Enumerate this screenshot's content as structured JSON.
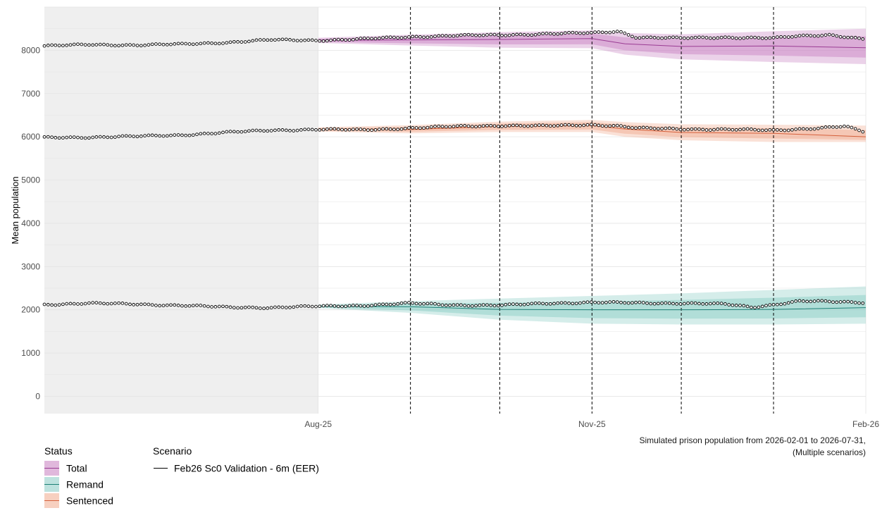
{
  "chart_data": {
    "type": "line",
    "title": "",
    "xlabel": "",
    "ylabel": "Mean population",
    "ylim": [
      -400,
      9000
    ],
    "yticks": [
      0,
      1000,
      2000,
      3000,
      4000,
      5000,
      6000,
      7000,
      8000
    ],
    "xlim": [
      "2025-05-01",
      "2026-02-01"
    ],
    "xticks": [
      {
        "date": "2025-08-01",
        "label": "Aug-25"
      },
      {
        "date": "2025-11-01",
        "label": "Nov-25"
      },
      {
        "date": "2026-02-01",
        "label": "Feb-26"
      }
    ],
    "shaded_period": [
      "2025-05-01",
      "2025-08-01"
    ],
    "vlines": [
      "2025-09-01",
      "2025-10-01",
      "2025-11-01",
      "2025-12-01",
      "2026-01-01"
    ],
    "grid": true,
    "colors": {
      "Total": "#9a3c93",
      "Remand": "#1d7f75",
      "Sentenced": "#d5603b",
      "Total_fill": "#c77ec0",
      "Remand_fill": "#86cbc3",
      "Sentenced_fill": "#f0a98c",
      "observed": "#000000",
      "shade": "#efefef"
    },
    "observed_series": [
      {
        "name": "Total",
        "points": [
          [
            "2025-05-01",
            8100
          ],
          [
            "2025-05-16",
            8130
          ],
          [
            "2025-06-01",
            8120
          ],
          [
            "2025-06-16",
            8140
          ],
          [
            "2025-07-01",
            8180
          ],
          [
            "2025-07-16",
            8240
          ],
          [
            "2025-08-01",
            8230
          ],
          [
            "2025-08-16",
            8260
          ],
          [
            "2025-09-01",
            8310
          ],
          [
            "2025-09-16",
            8340
          ],
          [
            "2025-10-01",
            8350
          ],
          [
            "2025-10-16",
            8380
          ],
          [
            "2025-11-01",
            8400
          ],
          [
            "2025-11-10",
            8440
          ],
          [
            "2025-11-16",
            8300
          ],
          [
            "2025-12-01",
            8280
          ],
          [
            "2025-12-16",
            8300
          ],
          [
            "2026-01-01",
            8280
          ],
          [
            "2026-01-10",
            8330
          ],
          [
            "2026-01-20",
            8360
          ],
          [
            "2026-02-01",
            8250
          ]
        ]
      },
      {
        "name": "Sentenced",
        "points": [
          [
            "2025-05-01",
            5980
          ],
          [
            "2025-05-16",
            5990
          ],
          [
            "2025-06-01",
            6010
          ],
          [
            "2025-06-16",
            6040
          ],
          [
            "2025-07-01",
            6100
          ],
          [
            "2025-07-16",
            6150
          ],
          [
            "2025-08-01",
            6170
          ],
          [
            "2025-08-16",
            6160
          ],
          [
            "2025-09-01",
            6200
          ],
          [
            "2025-09-16",
            6240
          ],
          [
            "2025-10-01",
            6260
          ],
          [
            "2025-10-16",
            6250
          ],
          [
            "2025-11-01",
            6280
          ],
          [
            "2025-11-10",
            6250
          ],
          [
            "2025-11-16",
            6200
          ],
          [
            "2025-12-01",
            6180
          ],
          [
            "2025-12-16",
            6170
          ],
          [
            "2026-01-01",
            6150
          ],
          [
            "2026-01-16",
            6200
          ],
          [
            "2026-01-25",
            6240
          ],
          [
            "2026-02-01",
            6100
          ]
        ]
      },
      {
        "name": "Remand",
        "points": [
          [
            "2025-05-01",
            2120
          ],
          [
            "2025-05-16",
            2150
          ],
          [
            "2025-06-01",
            2130
          ],
          [
            "2025-06-16",
            2100
          ],
          [
            "2025-07-01",
            2060
          ],
          [
            "2025-07-16",
            2050
          ],
          [
            "2025-08-01",
            2080
          ],
          [
            "2025-08-16",
            2100
          ],
          [
            "2025-09-01",
            2150
          ],
          [
            "2025-09-16",
            2110
          ],
          [
            "2025-10-01",
            2100
          ],
          [
            "2025-10-16",
            2150
          ],
          [
            "2025-11-01",
            2170
          ],
          [
            "2025-11-16",
            2160
          ],
          [
            "2025-12-01",
            2150
          ],
          [
            "2025-12-16",
            2130
          ],
          [
            "2025-12-25",
            2060
          ],
          [
            "2026-01-01",
            2120
          ],
          [
            "2026-01-10",
            2200
          ],
          [
            "2026-01-25",
            2180
          ],
          [
            "2026-02-01",
            2170
          ]
        ]
      }
    ],
    "series": [
      {
        "name": "Total",
        "x": [
          "2025-08-01",
          "2025-09-01",
          "2025-10-01",
          "2025-11-01",
          "2025-11-12",
          "2025-12-01",
          "2026-01-01",
          "2026-02-01"
        ],
        "y": [
          8230,
          8240,
          8250,
          8270,
          8150,
          8090,
          8100,
          8060
        ],
        "lower": [
          8170,
          8110,
          8060,
          8050,
          7900,
          7790,
          7730,
          7680
        ],
        "upper": [
          8290,
          8360,
          8420,
          8460,
          8400,
          8370,
          8440,
          8500
        ]
      },
      {
        "name": "Sentenced",
        "x": [
          "2025-08-01",
          "2025-09-01",
          "2025-10-01",
          "2025-11-01",
          "2025-11-12",
          "2025-12-01",
          "2026-01-01",
          "2026-02-01"
        ],
        "y": [
          6170,
          6170,
          6240,
          6260,
          6180,
          6100,
          6080,
          6000
        ],
        "lower": [
          6120,
          6080,
          6110,
          6110,
          6000,
          5920,
          5880,
          5880
        ],
        "upper": [
          6220,
          6270,
          6350,
          6390,
          6340,
          6290,
          6280,
          6260
        ]
      },
      {
        "name": "Remand",
        "x": [
          "2025-08-01",
          "2025-09-01",
          "2025-10-01",
          "2025-11-01",
          "2025-12-01",
          "2026-01-01",
          "2026-02-01"
        ],
        "y": [
          2080,
          2070,
          2010,
          2000,
          2000,
          2010,
          2050
        ],
        "lower": [
          2040,
          1930,
          1770,
          1680,
          1660,
          1660,
          1680
        ],
        "upper": [
          2120,
          2200,
          2260,
          2320,
          2380,
          2460,
          2540
        ]
      }
    ],
    "legend": {
      "placement": "bottom-left",
      "status_title": "Status",
      "status_items": [
        "Total",
        "Remand",
        "Sentenced"
      ],
      "scenario_title": "Scenario",
      "scenario_items": [
        "Feb26 Sc0 Validation - 6m (EER)"
      ]
    },
    "caption": [
      "Simulated prison population from 2026-02-01 to 2026-07-31,",
      "(Multiple scenarios)"
    ]
  }
}
